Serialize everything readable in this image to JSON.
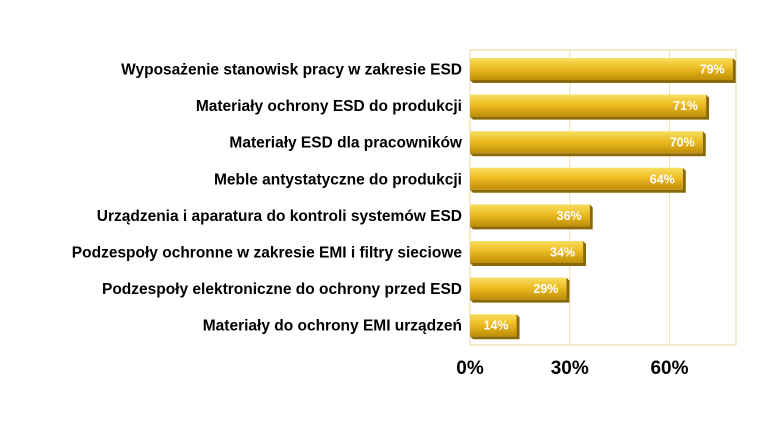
{
  "chart_data": {
    "type": "bar",
    "orientation": "horizontal",
    "categories": [
      "Wyposażenie stanowisk pracy w zakresie ESD",
      "Materiały ochrony ESD do produkcji",
      "Materiały ESD dla pracowników",
      "Meble antystatyczne do produkcji",
      "Urządzenia i aparatura do kontroli systemów ESD",
      "Podzespoły  ochronne w zakresie EMI i filtry sieciowe",
      "Podzespoły elektroniczne do ochrony przed ESD ",
      "Materiały do ochrony EMI urządzeń"
    ],
    "values": [
      79,
      71,
      70,
      64,
      36,
      34,
      29,
      14
    ],
    "data_labels": [
      "79%",
      "71%",
      "70%",
      "64%",
      "36%",
      "34%",
      "29%",
      "14%"
    ],
    "xlim": [
      0,
      80
    ],
    "xticks": [
      0,
      30,
      60
    ],
    "xtick_labels": [
      "0%",
      "30%",
      "60%"
    ],
    "grid": "vertical",
    "colors": {
      "bar_top": "#F8DE62",
      "bar_mid": "#EDBC22",
      "bar_bottom": "#BE8E08",
      "bar_side": "#8A6A08",
      "plot_border": "#E8D49A",
      "gridline": "#EDE2B0",
      "label_text": "#000000",
      "data_label_text": "#ffffff"
    }
  }
}
